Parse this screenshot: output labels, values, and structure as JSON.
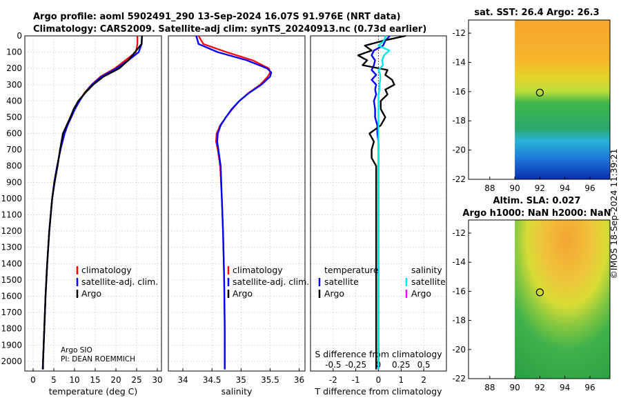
{
  "titles": {
    "line1": "Argo profile: aoml 5902491_290 13-Sep-2024 16.07S 91.976E (NRT data)",
    "line2": "Climatology: CARS2009. Satellite-adj clim: synTS_20240913.nc (0.73d earlier)",
    "sst": "sat. SST: 26.4 Argo: 26.3",
    "sla": "Altim. SLA: 0.027",
    "h": "Argo h1000: NaN h2000: NaN",
    "stamp": "©IMOS 18-Sep-2024 11:39:21"
  },
  "float_info": {
    "line1": "Argo SIO",
    "line2": "PI: DEAN ROEMMICH"
  },
  "colors": {
    "clim": "#ff0000",
    "sat": "#0000ff",
    "argo": "#000000",
    "satS": "#00e5ee",
    "argoS": "#ff00ff"
  },
  "legend1": {
    "clim": "climatology",
    "sat": "satellite-adj. clim.",
    "argo": "Argo"
  },
  "legend2": {
    "clim": "climatology",
    "sat": "satellite-adj. clim.",
    "argo": "Argo"
  },
  "legend3": {
    "head_t": "temperature",
    "head_s": "salinity",
    "t_sat": "satellite",
    "t_argo": "Argo",
    "s_sat": "satellite",
    "s_argo": "Argo"
  },
  "chart_data": [
    {
      "type": "line",
      "name": "temperature",
      "xlabel": "temperature (deg C)",
      "ylabel": "",
      "xlim": [
        -2,
        31
      ],
      "ylim": [
        2060,
        0
      ],
      "xticks": [
        0,
        5,
        10,
        15,
        20,
        25,
        30
      ],
      "yticks": [
        0,
        100,
        200,
        300,
        400,
        500,
        600,
        700,
        800,
        900,
        1000,
        1100,
        1200,
        1300,
        1400,
        1500,
        1600,
        1700,
        1800,
        1900,
        2000
      ],
      "depth": [
        0,
        50,
        100,
        150,
        200,
        250,
        300,
        350,
        400,
        450,
        500,
        550,
        600,
        700,
        800,
        900,
        1000,
        1200,
        1400,
        1600,
        1800,
        2000,
        2050
      ],
      "series": [
        {
          "name": "climatology",
          "values": [
            25.2,
            25.2,
            24.8,
            22.3,
            19.7,
            16.3,
            14.1,
            12.4,
            11.1,
            10.0,
            9.2,
            8.3,
            7.6,
            6.6,
            5.8,
            5.1,
            4.6,
            3.9,
            3.4,
            3.0,
            2.7,
            2.4,
            2.3
          ]
        },
        {
          "name": "satellite-adj. clim.",
          "values": [
            26.3,
            26.2,
            25.5,
            23.0,
            20.1,
            16.5,
            14.2,
            12.5,
            11.2,
            10.1,
            9.2,
            8.3,
            7.6,
            6.6,
            5.8,
            5.1,
            4.6,
            3.9,
            3.4,
            3.0,
            2.7,
            2.4,
            2.3
          ]
        },
        {
          "name": "Argo",
          "values": [
            26.3,
            26.2,
            24.6,
            23.0,
            20.8,
            17.0,
            14.5,
            12.6,
            10.9,
            9.8,
            9.0,
            8.1,
            7.2,
            6.5,
            5.9,
            5.2,
            4.6,
            3.9,
            3.4,
            3.0,
            2.7,
            2.4,
            2.4
          ]
        }
      ]
    },
    {
      "type": "line",
      "name": "salinity",
      "xlabel": "salinity",
      "ylabel": "",
      "xlim": [
        33.75,
        36.1
      ],
      "ylim": [
        2060,
        0
      ],
      "xticks": [
        34,
        34.5,
        35,
        35.5,
        36
      ],
      "depth": [
        0,
        50,
        100,
        150,
        200,
        225,
        250,
        300,
        350,
        400,
        450,
        500,
        550,
        600,
        650,
        700,
        800,
        1000,
        1200,
        1500,
        1800,
        2000,
        2050
      ],
      "series": [
        {
          "name": "climatology",
          "values": [
            34.27,
            34.35,
            34.75,
            35.2,
            35.48,
            35.5,
            35.46,
            35.33,
            35.13,
            34.97,
            34.85,
            34.74,
            34.64,
            34.58,
            34.57,
            34.6,
            34.64,
            34.67,
            34.69,
            34.71,
            34.72,
            34.72,
            34.72
          ]
        },
        {
          "name": "satellite-adj. clim.",
          "values": [
            34.23,
            34.27,
            34.6,
            35.1,
            35.45,
            35.52,
            35.5,
            35.35,
            35.14,
            34.97,
            34.84,
            34.74,
            34.65,
            34.6,
            34.59,
            34.61,
            34.65,
            34.67,
            34.69,
            34.71,
            34.72,
            34.72,
            34.72
          ]
        }
      ]
    },
    {
      "type": "line",
      "name": "differences",
      "xlabel": "T difference from climatology",
      "xlabel_top": "S difference from climatology",
      "xlim": [
        -3,
        3
      ],
      "ylim": [
        2060,
        0
      ],
      "xticks": [
        -2,
        -1,
        0,
        1,
        2
      ],
      "xticks_top": [
        -0.5,
        -0.25,
        0,
        0.25,
        0.5
      ],
      "depth": [
        0,
        30,
        60,
        90,
        120,
        150,
        180,
        210,
        240,
        270,
        300,
        330,
        360,
        400,
        450,
        500,
        550,
        600,
        650,
        700,
        750,
        800,
        900,
        1000,
        1200,
        1400,
        1600,
        1800,
        2000,
        2050
      ],
      "series": [
        {
          "name": "T satellite",
          "values": [
            0.5,
            0.3,
            0.2,
            -0.2,
            -0.3,
            -0.15,
            -0.2,
            -0.3,
            -0.1,
            -0.3,
            -0.1,
            -0.15,
            -0.1,
            -0.2,
            -0.15,
            -0.15,
            -0.05,
            -0.05,
            0,
            0,
            0,
            0,
            0,
            0,
            0,
            0,
            0,
            0,
            0,
            0
          ]
        },
        {
          "name": "T Argo",
          "values": [
            1.2,
            0.2,
            -0.6,
            -0.3,
            -0.9,
            -0.5,
            -0.7,
            0.4,
            0.3,
            0.6,
            0.7,
            0.3,
            0.4,
            0.1,
            0.1,
            0.3,
            0.1,
            -0.4,
            -0.2,
            -0.3,
            -0.3,
            -0.1,
            -0.1,
            -0.1,
            -0.1,
            -0.1,
            -0.1,
            -0.1,
            -0.1,
            -0.1
          ]
        },
        {
          "name": "S satellite",
          "values": [
            0.08,
            0.06,
            0.0,
            0.12,
            0.06,
            0.04,
            0.05,
            0.0,
            0.02,
            0.02,
            0.01,
            0.01,
            0,
            0,
            0,
            0,
            0,
            0,
            0,
            0,
            0,
            0,
            0,
            0,
            0,
            0,
            0,
            0,
            0,
            0
          ]
        }
      ]
    }
  ],
  "maps": {
    "sst": {
      "yticks": [
        -12,
        -14,
        -16,
        -18,
        -20,
        -22
      ],
      "xticks": [
        88,
        90,
        92,
        94,
        96
      ],
      "marker": [
        92,
        -16.07
      ]
    },
    "sla": {
      "yticks": [
        -12,
        -14,
        -16,
        -18,
        -20,
        -22
      ],
      "xticks": [
        88,
        90,
        92,
        94,
        96
      ],
      "marker": [
        92,
        -16.07
      ]
    }
  }
}
